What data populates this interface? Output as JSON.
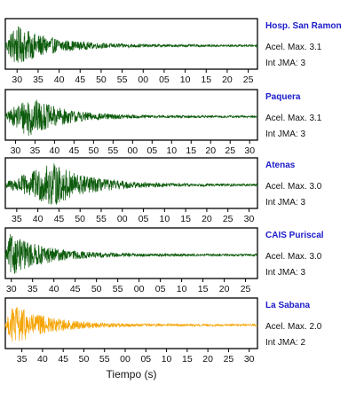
{
  "chart_data": {
    "type": "line",
    "xlabel": "Tiempo (s)",
    "colors": {
      "station_label": "#1a1acc",
      "normal_trace": "#0b5a0b",
      "highlight_trace": "#f5a300"
    },
    "panels": [
      {
        "station": "Hosp. San Ramon",
        "aceleracion": "Acel. Max. 3.1",
        "intensidad": "Int JMA: 3",
        "trace_color": "normal_trace",
        "tick_labels": [
          "30",
          "35",
          "40",
          "45",
          "50",
          "55",
          "00",
          "05",
          "10",
          "15",
          "20",
          "25"
        ],
        "x_start_s": 27.2,
        "x_end_s": 87.2,
        "peak_amplitude": 0.92,
        "peak_time_s": 29.5
      },
      {
        "station": "Paquera",
        "aceleracion": "Acel. Max. 3.1",
        "intensidad": "Int JMA: 3",
        "trace_color": "normal_trace",
        "tick_labels": [
          "30",
          "35",
          "40",
          "45",
          "50",
          "55",
          "00",
          "05",
          "10",
          "15",
          "20",
          "25",
          "30"
        ],
        "x_start_s": 27.4,
        "x_end_s": 92.0,
        "peak_amplitude": 0.92,
        "peak_time_s": 33.5
      },
      {
        "station": "Atenas",
        "aceleracion": "Acel. Max. 3.0",
        "intensidad": "Int JMA: 3",
        "trace_color": "normal_trace",
        "tick_labels": [
          "35",
          "40",
          "45",
          "50",
          "55",
          "00",
          "05",
          "10",
          "15",
          "20",
          "25",
          "30"
        ],
        "x_start_s": 32.3,
        "x_end_s": 92.0,
        "peak_amplitude": 0.95,
        "peak_time_s": 43.8
      },
      {
        "station": "CAIS Puriscal",
        "aceleracion": "Acel. Max. 3.0",
        "intensidad": "Int JMA: 3",
        "trace_color": "normal_trace",
        "tick_labels": [
          "30",
          "35",
          "40",
          "45",
          "50",
          "55",
          "00",
          "05",
          "10",
          "15",
          "20",
          "25"
        ],
        "x_start_s": 28.6,
        "x_end_s": 87.8,
        "peak_amplitude": 0.92,
        "peak_time_s": 29.8
      },
      {
        "station": "La Sabana",
        "aceleracion": "Acel. Max. 2.0",
        "intensidad": "Int JMA: 2",
        "trace_color": "highlight_trace",
        "tick_labels": [
          "35",
          "40",
          "45",
          "50",
          "55",
          "00",
          "05",
          "10",
          "15",
          "20",
          "25",
          "30"
        ],
        "x_start_s": 31.0,
        "x_end_s": 92.0,
        "peak_amplitude": 0.9,
        "peak_time_s": 33.0
      }
    ]
  }
}
